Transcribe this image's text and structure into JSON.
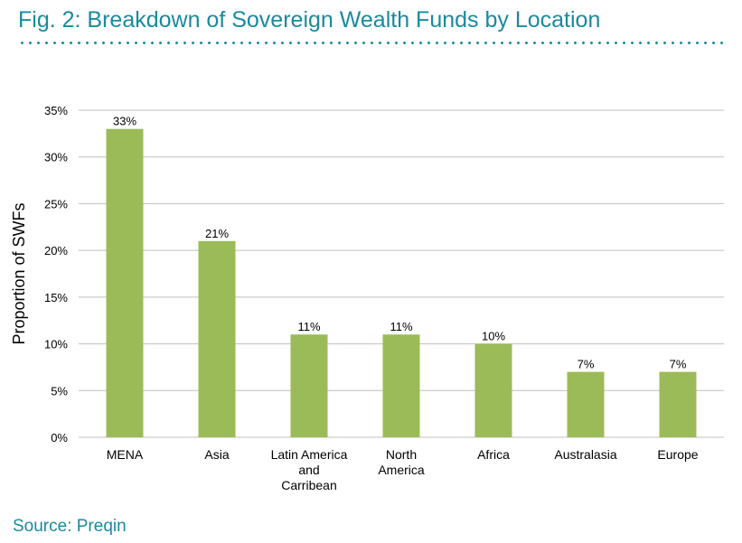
{
  "header": {
    "title": "Fig. 2: Breakdown of Sovereign Wealth Funds by Location"
  },
  "footer": {
    "source": "Source: Preqin"
  },
  "colors": {
    "accent": "#1a8a9e",
    "bar": "#9bbb59",
    "grid": "#bfbfbf"
  },
  "chart_data": {
    "type": "bar",
    "title": "",
    "xlabel": "",
    "ylabel": "Proportion of SWFs",
    "ylim": [
      0,
      35
    ],
    "yticks": [
      0,
      5,
      10,
      15,
      20,
      25,
      30,
      35
    ],
    "ytick_labels": [
      "0%",
      "5%",
      "10%",
      "15%",
      "20%",
      "25%",
      "30%",
      "35%"
    ],
    "grid": true,
    "legend": "none",
    "categories": [
      [
        "MENA"
      ],
      [
        "Asia"
      ],
      [
        "Latin America",
        "and",
        "Carribean"
      ],
      [
        "North",
        "America"
      ],
      [
        "Africa"
      ],
      [
        "Australasia"
      ],
      [
        "Europe"
      ]
    ],
    "values": [
      33,
      21,
      11,
      11,
      10,
      7,
      7
    ],
    "data_labels": [
      "33%",
      "21%",
      "11%",
      "11%",
      "10%",
      "7%",
      "7%"
    ]
  }
}
